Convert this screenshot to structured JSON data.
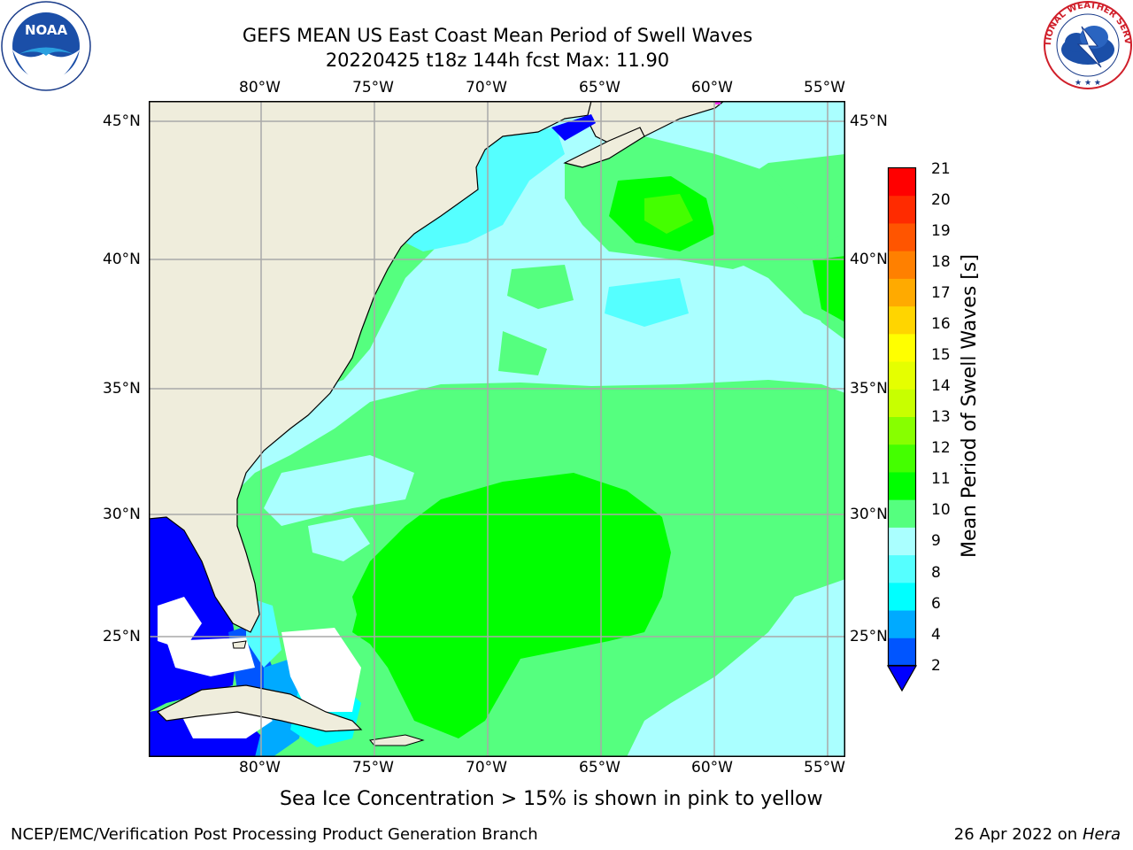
{
  "header": {
    "title_line1": "GEFS MEAN US East Coast Mean Period of Swell Waves",
    "title_line2": "20220425 t18z 144h fcst   Max: 11.90"
  },
  "logos": {
    "left": "NOAA",
    "left_ring_text": "NATIONAL OCEANIC AND ATMOSPHERIC ADMINISTRATION · U.S. DEPARTMENT OF COMMERCE",
    "right_ring_text": "NATIONAL WEATHER SERVICE"
  },
  "map": {
    "lon_labels": [
      "80°W",
      "75°W",
      "70°W",
      "65°W",
      "60°W",
      "55°W"
    ],
    "lat_labels": [
      "45°N",
      "40°N",
      "35°N",
      "30°N",
      "25°N"
    ],
    "ocean_base_color": "#55ff7f",
    "land_color": "#efeddc"
  },
  "colorbar": {
    "ticks": [
      "21",
      "20",
      "19",
      "18",
      "17",
      "16",
      "15",
      "14",
      "13",
      "12",
      "11",
      "10",
      "9",
      "8",
      "6",
      "4",
      "2"
    ],
    "colors": [
      "#ff0000",
      "#ff2b00",
      "#ff5500",
      "#ff8000",
      "#ffaa00",
      "#ffd500",
      "#ffff00",
      "#e5ff00",
      "#c8ff00",
      "#87ff00",
      "#44ff00",
      "#00ff00",
      "#55ff7f",
      "#aaffff",
      "#55ffff",
      "#00ffff",
      "#00aaff",
      "#0055ff"
    ],
    "under_color": "#0000ff",
    "units_label": "Mean Period of Swell Waves [s]"
  },
  "note": "Sea Ice Concentration > 15% is shown in pink to yellow",
  "footer": {
    "left": "NCEP/EMC/Verification Post Processing Product Generation Branch",
    "date": "26 Apr 2022 on ",
    "machine": "Hera"
  }
}
